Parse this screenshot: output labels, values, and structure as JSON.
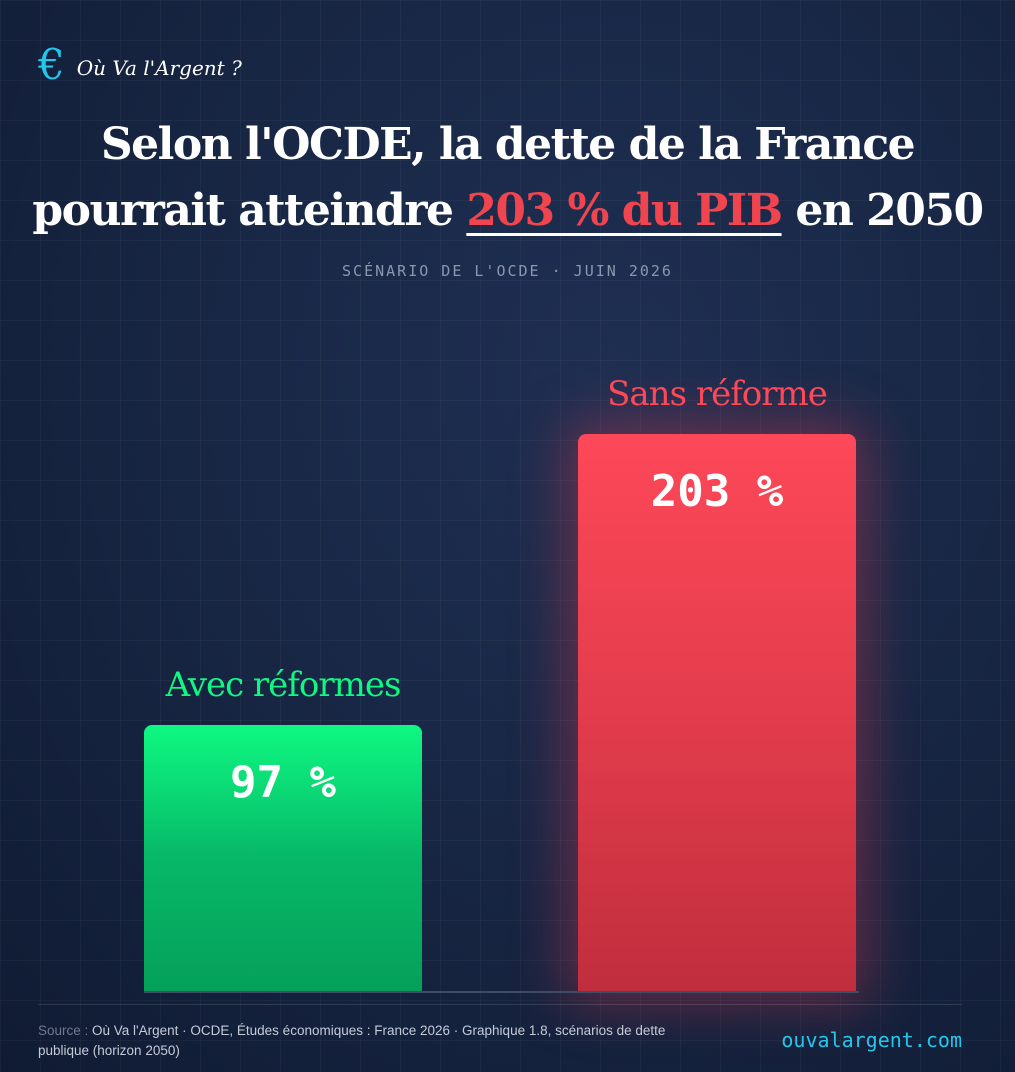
{
  "brand": {
    "icon": "euro-icon",
    "icon_glyph": "€",
    "name": "Où Va l'Argent ?"
  },
  "title": {
    "line1": "Selon l'OCDE, la dette de la France",
    "line2_before": "pourrait atteindre ",
    "highlight": "203 % du PIB",
    "line2_after": " en 2050"
  },
  "subtitle": "SCÉNARIO DE L'OCDE · JUIN 2026",
  "colors": {
    "accent": "#22c7ee",
    "green": "#0ff882",
    "red": "#fd4858",
    "highlight": "#f0454f"
  },
  "chart_data": {
    "type": "bar",
    "categories": [
      "Avec réformes",
      "Sans réforme"
    ],
    "values": [
      97,
      203
    ],
    "value_labels": [
      "97 %",
      "203 %"
    ],
    "colors": [
      "#0ff882",
      "#fd4858"
    ],
    "unit": "% du PIB",
    "ylim": [
      0,
      203
    ],
    "grid": false
  },
  "footer": {
    "source_prefix": "Source : ",
    "source_text": "Où Va l'Argent · OCDE, Études économiques : France 2026 · Graphique 1.8, scénarios de dette publique (horizon 2050)",
    "website": "ouvalargent.com"
  }
}
